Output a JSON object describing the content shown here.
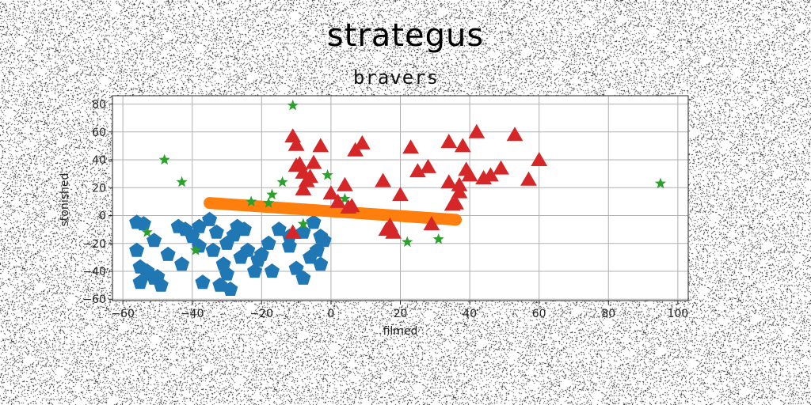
{
  "title": "strategus",
  "subtitle": "bravers",
  "colors": {
    "pentagon": "#1f77b4",
    "line": "#ff7f0e",
    "star": "#2ca02c",
    "triangle": "#d62728",
    "grid": "#b0b0b0",
    "axis": "#222222"
  },
  "chart_data": {
    "type": "scatter",
    "title": "strategus",
    "subtitle": "bravers",
    "xlabel": "filmed",
    "ylabel": "stonished",
    "xlim": [
      -63,
      103
    ],
    "ylim": [
      -61,
      86
    ],
    "xticks": [
      -60,
      -40,
      -20,
      0,
      20,
      40,
      60,
      80,
      100
    ],
    "yticks": [
      -60,
      -40,
      -20,
      0,
      20,
      40,
      60,
      80
    ],
    "xtick_labels": [
      "−60",
      "−40",
      "−20",
      "0",
      "20",
      "40",
      "60",
      "80",
      "100"
    ],
    "ytick_labels": [
      "−60",
      "−40",
      "−20",
      "0",
      "20",
      "40",
      "60",
      "80"
    ],
    "grid": true,
    "series": [
      {
        "marker": "pentagon",
        "color": "#1f77b4",
        "x": [
          -56,
          -54,
          -51,
          -56,
          -55,
          -53,
          -51,
          -49,
          -50,
          -53,
          -55,
          -47,
          -43,
          -42,
          -40,
          -38,
          -35,
          -33,
          -30,
          -28,
          -27,
          -26,
          -24,
          -22,
          -21,
          -18,
          -15,
          -12,
          -10,
          -8,
          -6,
          -4,
          -3,
          -34,
          -31,
          -29,
          -37,
          -30,
          -17,
          -12,
          -8,
          -5,
          -2,
          -3,
          -25,
          -20,
          -32,
          -44,
          -38
        ],
        "y": [
          -5,
          -6,
          -18,
          -25,
          -37,
          -42,
          -45,
          -50,
          -44,
          -40,
          -48,
          -28,
          -35,
          -10,
          -15,
          -8,
          -3,
          -12,
          -20,
          -14,
          -8,
          -30,
          -25,
          -40,
          -32,
          -20,
          -10,
          -15,
          -38,
          -45,
          -30,
          -25,
          -15,
          -25,
          -35,
          -53,
          -48,
          -42,
          -40,
          -22,
          -12,
          -5,
          -18,
          -35,
          -10,
          -28,
          -50,
          -8,
          -22
        ]
      },
      {
        "marker": "line",
        "color": "#ff7f0e",
        "x": [
          -35,
          36
        ],
        "y": [
          9,
          -3
        ]
      },
      {
        "marker": "star",
        "color": "#2ca02c",
        "x": [
          -11,
          -48,
          -43,
          -53,
          -39,
          -23,
          -18,
          -17,
          -14,
          -8,
          -1,
          4,
          22,
          31,
          95
        ],
        "y": [
          79,
          40,
          24,
          -12,
          -25,
          10,
          9,
          15,
          24,
          -6,
          29,
          12,
          -19,
          -17,
          23
        ]
      },
      {
        "marker": "triangle",
        "color": "#d62728",
        "x": [
          -11,
          -10,
          -10,
          -9,
          -8,
          -6,
          -5,
          -3,
          -11,
          -8,
          -7,
          0,
          2,
          4,
          5,
          6,
          7,
          9,
          15,
          16,
          17,
          18,
          20,
          23,
          25,
          28,
          29,
          34,
          34,
          35,
          37,
          38,
          39,
          40,
          42,
          44,
          46,
          49,
          53,
          57,
          60,
          -11,
          36,
          37
        ],
        "y": [
          57,
          51,
          36,
          37,
          31,
          28,
          38,
          50,
          -12,
          19,
          25,
          16,
          10,
          22,
          6,
          7,
          47,
          52,
          25,
          -10,
          -7,
          -12,
          15,
          49,
          32,
          35,
          -6,
          53,
          24,
          8,
          22,
          50,
          33,
          29,
          60,
          27,
          29,
          34,
          58,
          26,
          40,
          -12,
          9,
          17
        ]
      }
    ]
  }
}
